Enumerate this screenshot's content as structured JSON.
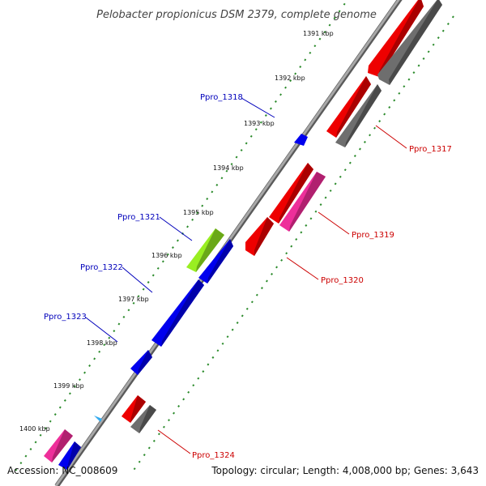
{
  "title": "Pelobacter propionicus DSM 2379, complete genome",
  "accession": "Accession: NC_008609",
  "topology": "Topology: circular; Length: 4,008,000 bp; Genes: 3,643",
  "colors": {
    "backbone": "#8a8a8a",
    "dots": "#2a8a2a",
    "red": "#ee0000",
    "gray": "#6e6e6e",
    "pink": "#ee2f9a",
    "blue": "#0000ee",
    "green": "#99ee22",
    "cyan": "#33aaee",
    "label_left": "#0000bb",
    "label_right": "#cc0000"
  },
  "kbp_ticks": [
    "1391 kbp",
    "1392 kbp",
    "1393 kbp",
    "1394 kbp",
    "1395 kbp",
    "1396 kbp",
    "1397 kbp",
    "1398 kbp",
    "1399 kbp",
    "1400 kbp"
  ],
  "gene_labels": [
    {
      "id": "ppro-1317",
      "text": "Ppro_1317",
      "side": "right"
    },
    {
      "id": "ppro-1318",
      "text": "Ppro_1318",
      "side": "left"
    },
    {
      "id": "ppro-1319",
      "text": "Ppro_1319",
      "side": "right"
    },
    {
      "id": "ppro-1320",
      "text": "Ppro_1320",
      "side": "right"
    },
    {
      "id": "ppro-1321",
      "text": "Ppro_1321",
      "side": "left"
    },
    {
      "id": "ppro-1322",
      "text": "Ppro_1322",
      "side": "left"
    },
    {
      "id": "ppro-1323",
      "text": "Ppro_1323",
      "side": "left"
    },
    {
      "id": "ppro-1324",
      "text": "Ppro_1324",
      "side": "right"
    }
  ],
  "features": [
    {
      "id": "f-red-1317",
      "color": "red",
      "strand": "outer-1"
    },
    {
      "id": "f-gray-1317",
      "color": "gray",
      "strand": "outer-2"
    },
    {
      "id": "f-blue-1318",
      "color": "blue",
      "strand": "inner-1"
    },
    {
      "id": "f-red-1319",
      "color": "red",
      "strand": "outer-1"
    },
    {
      "id": "f-pink-1319",
      "color": "pink",
      "strand": "outer-2"
    },
    {
      "id": "f-red-1320",
      "color": "red",
      "strand": "outer-1"
    },
    {
      "id": "f-green-1321",
      "color": "green",
      "strand": "inner-2"
    },
    {
      "id": "f-blue-1322a",
      "color": "blue",
      "strand": "inner-1"
    },
    {
      "id": "f-blue-1322b",
      "color": "blue",
      "strand": "inner-1"
    },
    {
      "id": "f-blue-1323",
      "color": "blue",
      "strand": "inner-1"
    },
    {
      "id": "f-cyan-small",
      "color": "cyan",
      "strand": "inner-2"
    },
    {
      "id": "f-red-1324",
      "color": "red",
      "strand": "outer-1"
    },
    {
      "id": "f-gray-1324",
      "color": "gray",
      "strand": "outer-2"
    },
    {
      "id": "f-pink-bottom",
      "color": "pink",
      "strand": "inner-2"
    },
    {
      "id": "f-blue-bottom",
      "color": "blue",
      "strand": "inner-1"
    }
  ]
}
